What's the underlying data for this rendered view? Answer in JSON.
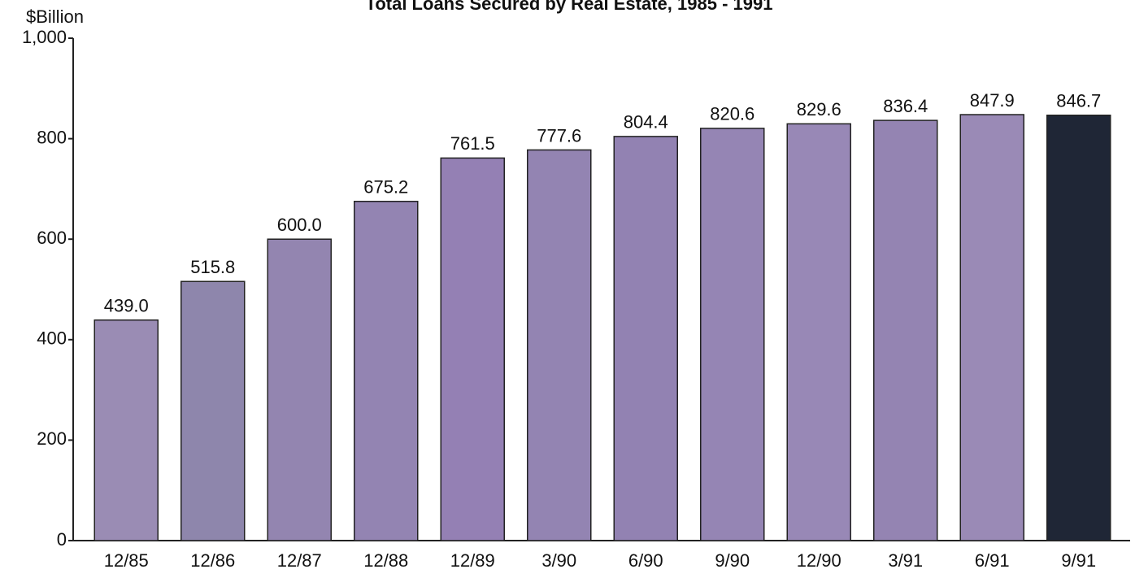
{
  "chart_data": {
    "type": "bar",
    "title": "Total Loans Secured by Real Estate, 1985 - 1991",
    "y_label": "$Billion",
    "categories": [
      "12/85",
      "12/86",
      "12/87",
      "12/88",
      "12/89",
      "3/90",
      "6/90",
      "9/90",
      "12/90",
      "3/91",
      "6/91",
      "9/91"
    ],
    "values": [
      439.0,
      515.8,
      600.0,
      675.2,
      761.5,
      777.6,
      804.4,
      820.6,
      829.6,
      836.4,
      847.9,
      846.7
    ],
    "value_labels": [
      "439.0",
      "515.8",
      "600.0",
      "675.2",
      "761.5",
      "777.6",
      "804.4",
      "820.6",
      "829.6",
      "836.4",
      "847.9",
      "846.7"
    ],
    "colors": [
      "#9a8cb4",
      "#8e86ac",
      "#9385b0",
      "#9384b2",
      "#9480b4",
      "#9384b2",
      "#9282b2",
      "#9585b4",
      "#9888b6",
      "#9484b2",
      "#9a8ab6",
      "#1f2636"
    ],
    "ylim": [
      0,
      1000
    ],
    "yticks": [
      0,
      200,
      400,
      600,
      800,
      {
        "value": 1000,
        "label": "1,000"
      }
    ]
  }
}
